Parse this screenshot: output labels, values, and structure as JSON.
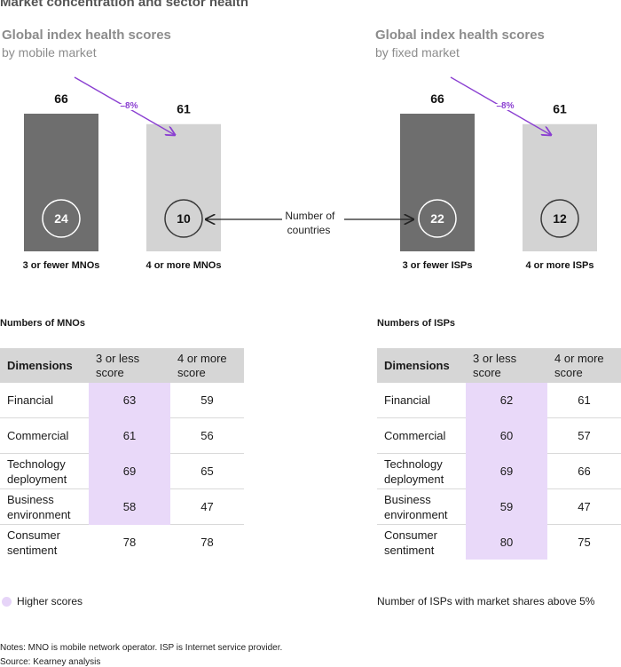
{
  "page_title": "Market concentration and sector health",
  "chart_data": [
    {
      "type": "bar",
      "title": "Global index health scores",
      "subtitle": "by mobile market",
      "categories": [
        "3 or fewer MNOs",
        "4 or more MNOs"
      ],
      "values": [
        66,
        61
      ],
      "value_labels": [
        "66",
        "61"
      ],
      "countries": [
        "24",
        "10"
      ],
      "change_label": "–8%",
      "colors": [
        "#6e6e6e",
        "#d3d3d3"
      ],
      "ylim": [
        0,
        66
      ]
    },
    {
      "type": "bar",
      "title": "Global index health scores",
      "subtitle": "by fixed market",
      "categories": [
        "3 or fewer ISPs",
        "4 or more ISPs"
      ],
      "values": [
        66,
        61
      ],
      "value_labels": [
        "66",
        "61"
      ],
      "countries": [
        "22",
        "12"
      ],
      "change_label": "–8%",
      "colors": [
        "#6e6e6e",
        "#d3d3d3"
      ],
      "ylim": [
        0,
        66
      ]
    }
  ],
  "countries_annotation": [
    "Number of",
    "countries"
  ],
  "accent_color": "#8a3fd1",
  "highlight_color": "#e9d9f9",
  "tables": [
    {
      "heading": "Numbers of MNOs",
      "header": {
        "dimension": "Dimensions",
        "col1": [
          "3 or less",
          "score"
        ],
        "col2": [
          "4 or more",
          "score"
        ]
      },
      "rows": [
        {
          "label": [
            "Financial"
          ],
          "a": "63",
          "b": "59",
          "highlight": true
        },
        {
          "label": [
            "Commercial"
          ],
          "a": "61",
          "b": "56",
          "highlight": true
        },
        {
          "label": [
            "Technology",
            "deployment"
          ],
          "a": "69",
          "b": "65",
          "highlight": true
        },
        {
          "label": [
            "Business",
            "environment"
          ],
          "a": "58",
          "b": "47",
          "highlight": true
        },
        {
          "label": [
            "Consumer",
            "sentiment"
          ],
          "a": "78",
          "b": "78",
          "highlight": false
        }
      ]
    },
    {
      "heading": "Numbers of ISPs",
      "header": {
        "dimension": "Dimensions",
        "col1": [
          "3 or less",
          "score"
        ],
        "col2": [
          "4 or more",
          "score"
        ]
      },
      "rows": [
        {
          "label": [
            "Financial"
          ],
          "a": "62",
          "b": "61",
          "highlight": true
        },
        {
          "label": [
            "Commercial"
          ],
          "a": "60",
          "b": "57",
          "highlight": true
        },
        {
          "label": [
            "Technology",
            "deployment"
          ],
          "a": "69",
          "b": "66",
          "highlight": true
        },
        {
          "label": [
            "Business",
            "environment"
          ],
          "a": "59",
          "b": "47",
          "highlight": true
        },
        {
          "label": [
            "Consumer",
            "sentiment"
          ],
          "a": "80",
          "b": "75",
          "highlight": true
        }
      ]
    }
  ],
  "legend_label": "Higher scores",
  "isp_note": "Number of ISPs with market shares above 5%",
  "notes": "Notes: MNO is mobile network operator. ISP is Internet service provider.",
  "source": "Source: Kearney analysis"
}
